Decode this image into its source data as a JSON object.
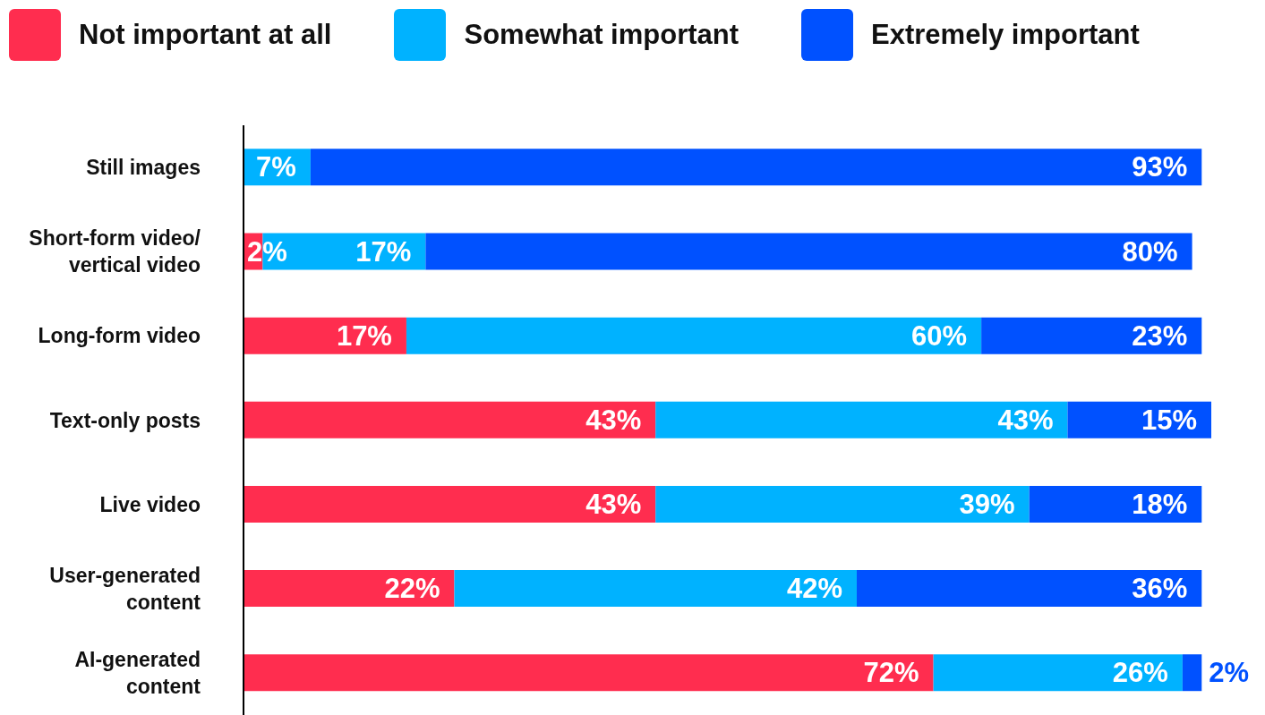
{
  "chart_data": {
    "type": "bar",
    "orientation": "horizontal",
    "stacked": true,
    "legend": "top",
    "tick_labels": "y",
    "grid": false,
    "categories": [
      "Still images",
      "Short-form video/ vertical video",
      "Long-form video",
      "Text-only posts",
      "Live video",
      "User-generated content",
      "AI-generated content"
    ],
    "xlim": [
      0,
      101
    ],
    "series": [
      {
        "name": "Not important at all",
        "color": "#ff2d4f",
        "values": [
          0,
          2,
          17,
          43,
          43,
          22,
          72
        ],
        "value_labels": [
          null,
          "2%",
          "17%",
          "43%",
          "43%",
          "22%",
          "72%"
        ]
      },
      {
        "name": "Somewhat important",
        "color": "#00b2ff",
        "values": [
          7,
          17,
          60,
          43,
          39,
          42,
          26
        ],
        "value_labels": [
          "7%",
          "17%",
          "60%",
          "43%",
          "39%",
          "42%",
          "26%"
        ]
      },
      {
        "name": "Extremely important",
        "color": "#0051ff",
        "values": [
          93,
          80,
          23,
          15,
          18,
          36,
          2
        ],
        "value_labels": [
          "93%",
          "80%",
          "23%",
          "15%",
          "18%",
          "36%",
          "2%"
        ]
      }
    ]
  }
}
